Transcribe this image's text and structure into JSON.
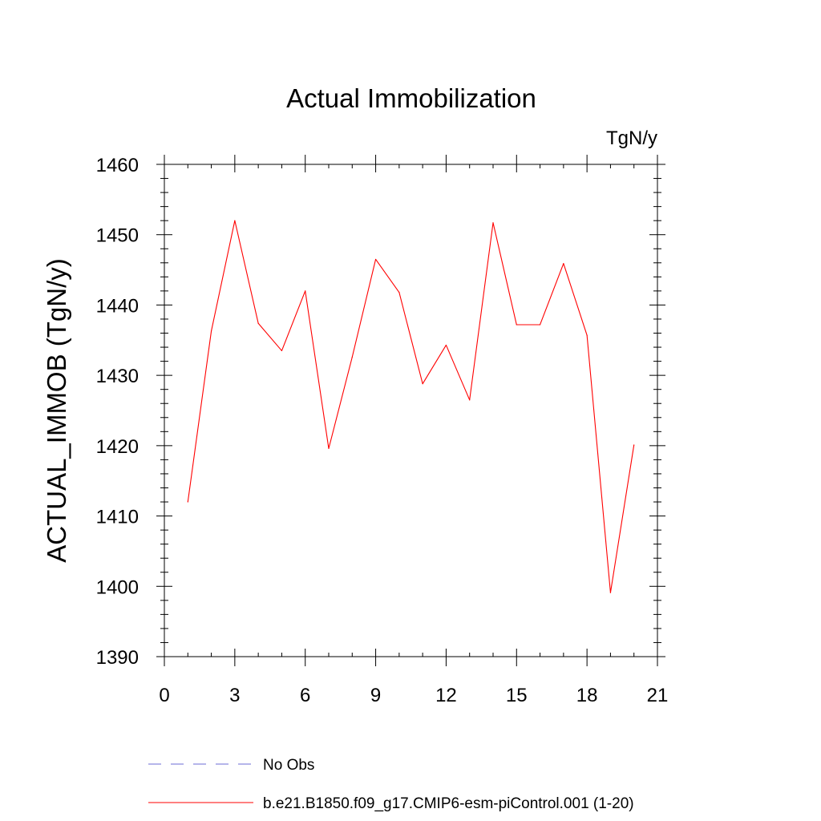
{
  "chart_data": {
    "type": "line",
    "title": "Actual Immobilization",
    "units_label": "TgN/y",
    "ylabel": "ACTUAL_IMMOB  (TgN/y)",
    "xlabel": "",
    "xlim": [
      0,
      21
    ],
    "ylim": [
      1390,
      1460
    ],
    "x_ticks": [
      0,
      3,
      6,
      9,
      12,
      15,
      18,
      21
    ],
    "y_ticks": [
      1390,
      1400,
      1410,
      1420,
      1430,
      1440,
      1450,
      1460
    ],
    "grid": false,
    "legend_position": "bottom",
    "series": [
      {
        "name": "No Obs",
        "style": "dashed",
        "color": "#6b6bd6",
        "x": [],
        "y": []
      },
      {
        "name": "b.e21.B1850.f09_g17.CMIP6-esm-piControl.001 (1-20)",
        "style": "solid",
        "color": "#ff0000",
        "x": [
          1,
          2,
          3,
          4,
          5,
          6,
          7,
          8,
          9,
          10,
          11,
          12,
          13,
          14,
          15,
          16,
          17,
          18,
          19,
          20
        ],
        "y": [
          1412.0,
          1436.3,
          1452.0,
          1437.4,
          1433.5,
          1442.0,
          1419.6,
          1432.6,
          1446.5,
          1441.8,
          1428.8,
          1434.3,
          1426.5,
          1451.7,
          1437.2,
          1437.2,
          1445.9,
          1435.7,
          1399.1,
          1420.1
        ]
      }
    ]
  }
}
